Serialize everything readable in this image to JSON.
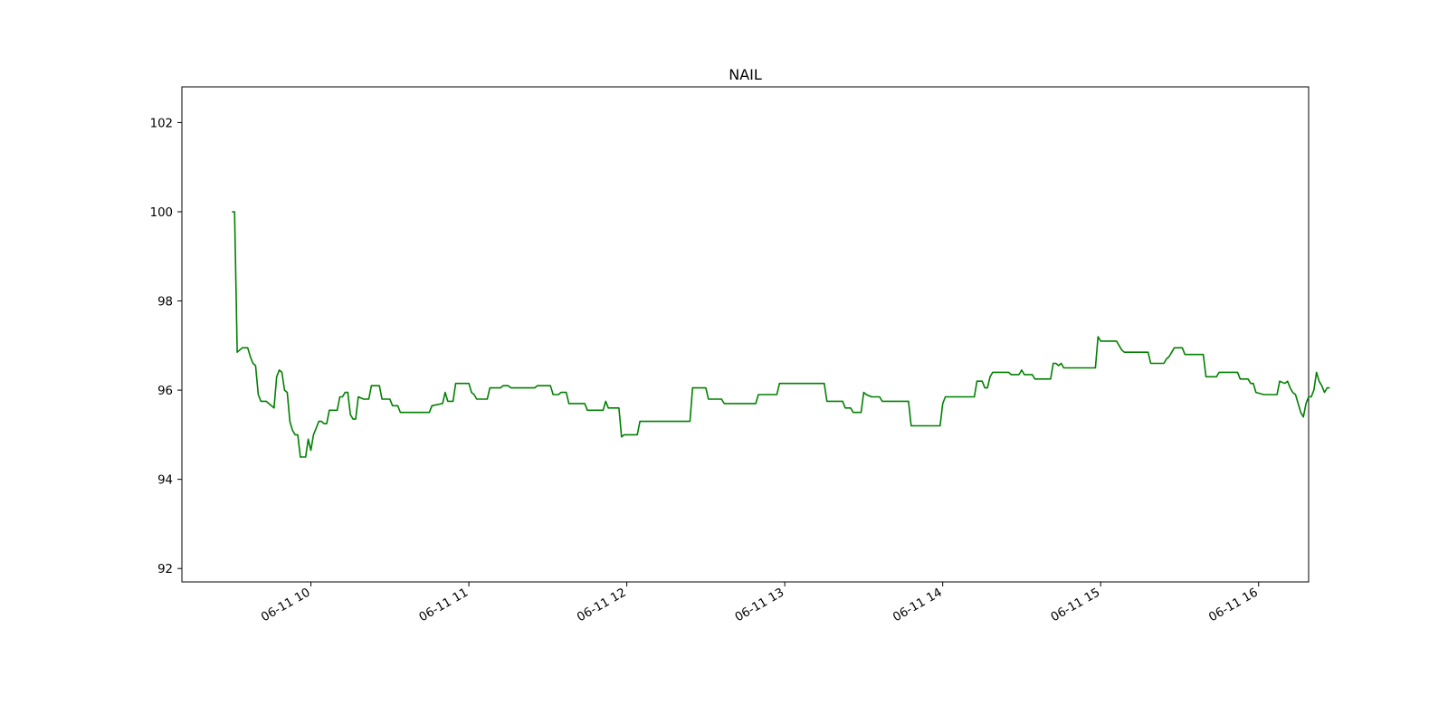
{
  "chart_data": {
    "type": "line",
    "title": "NAIL",
    "xlabel": "",
    "ylabel": "",
    "x_axis_type": "time",
    "ylim": [
      91.7,
      102.8
    ],
    "xlim": [
      "06-11 09:11",
      "06-11 16:19"
    ],
    "yticks": [
      92,
      94,
      96,
      98,
      100,
      102
    ],
    "xticks": [
      "06-11 10",
      "06-11 11",
      "06-11 12",
      "06-11 13",
      "06-11 14",
      "06-11 15",
      "06-11 16"
    ],
    "grid": false,
    "legend": "none",
    "series": [
      {
        "color": "#008000",
        "points": [
          [
            "09:30",
            100.0
          ],
          [
            "09:31",
            100.0
          ],
          [
            "09:32",
            96.85
          ],
          [
            "09:33",
            96.9
          ],
          [
            "09:34",
            96.95
          ],
          [
            "09:36",
            96.95
          ],
          [
            "09:37",
            96.75
          ],
          [
            "09:38",
            96.6
          ],
          [
            "09:39",
            96.55
          ],
          [
            "09:40",
            95.9
          ],
          [
            "09:41",
            95.75
          ],
          [
            "09:42",
            95.75
          ],
          [
            "09:43",
            95.75
          ],
          [
            "09:44",
            95.7
          ],
          [
            "09:45",
            95.65
          ],
          [
            "09:46",
            95.6
          ],
          [
            "09:47",
            96.3
          ],
          [
            "09:48",
            96.45
          ],
          [
            "09:49",
            96.4
          ],
          [
            "09:50",
            96.0
          ],
          [
            "09:51",
            95.95
          ],
          [
            "09:52",
            95.3
          ],
          [
            "09:53",
            95.1
          ],
          [
            "09:54",
            95.0
          ],
          [
            "09:55",
            95.0
          ],
          [
            "09:56",
            94.5
          ],
          [
            "09:57",
            94.5
          ],
          [
            "09:58",
            94.5
          ],
          [
            "09:59",
            94.9
          ],
          [
            "10:00",
            94.65
          ],
          [
            "10:01",
            95.0
          ],
          [
            "10:02",
            95.15
          ],
          [
            "10:03",
            95.3
          ],
          [
            "10:04",
            95.3
          ],
          [
            "10:05",
            95.25
          ],
          [
            "10:06",
            95.25
          ],
          [
            "10:07",
            95.55
          ],
          [
            "10:10",
            95.55
          ],
          [
            "10:11",
            95.85
          ],
          [
            "10:12",
            95.85
          ],
          [
            "10:13",
            95.95
          ],
          [
            "10:14",
            95.95
          ],
          [
            "10:15",
            95.45
          ],
          [
            "10:16",
            95.35
          ],
          [
            "10:17",
            95.35
          ],
          [
            "10:18",
            95.85
          ],
          [
            "10:20",
            95.8
          ],
          [
            "10:22",
            95.8
          ],
          [
            "10:23",
            96.1
          ],
          [
            "10:26",
            96.1
          ],
          [
            "10:27",
            95.8
          ],
          [
            "10:30",
            95.8
          ],
          [
            "10:31",
            95.65
          ],
          [
            "10:33",
            95.65
          ],
          [
            "10:34",
            95.5
          ],
          [
            "10:45",
            95.5
          ],
          [
            "10:46",
            95.65
          ],
          [
            "10:50",
            95.7
          ],
          [
            "10:51",
            95.95
          ],
          [
            "10:52",
            95.75
          ],
          [
            "10:54",
            95.75
          ],
          [
            "10:55",
            96.15
          ],
          [
            "11:00",
            96.15
          ],
          [
            "11:01",
            95.95
          ],
          [
            "11:02",
            95.9
          ],
          [
            "11:03",
            95.8
          ],
          [
            "11:07",
            95.8
          ],
          [
            "11:08",
            96.05
          ],
          [
            "11:12",
            96.05
          ],
          [
            "11:13",
            96.1
          ],
          [
            "11:15",
            96.1
          ],
          [
            "11:16",
            96.05
          ],
          [
            "11:25",
            96.05
          ],
          [
            "11:26",
            96.1
          ],
          [
            "11:31",
            96.1
          ],
          [
            "11:32",
            95.9
          ],
          [
            "11:34",
            95.9
          ],
          [
            "11:35",
            95.95
          ],
          [
            "11:37",
            95.95
          ],
          [
            "11:38",
            95.7
          ],
          [
            "11:44",
            95.7
          ],
          [
            "11:45",
            95.55
          ],
          [
            "11:51",
            95.55
          ],
          [
            "11:52",
            95.75
          ],
          [
            "11:53",
            95.6
          ],
          [
            "11:57",
            95.6
          ],
          [
            "11:58",
            94.95
          ],
          [
            "11:59",
            95.0
          ],
          [
            "12:04",
            95.0
          ],
          [
            "12:05",
            95.3
          ],
          [
            "12:24",
            95.3
          ],
          [
            "12:25",
            96.05
          ],
          [
            "12:30",
            96.05
          ],
          [
            "12:31",
            95.8
          ],
          [
            "12:36",
            95.8
          ],
          [
            "12:37",
            95.7
          ],
          [
            "12:49",
            95.7
          ],
          [
            "12:50",
            95.9
          ],
          [
            "12:57",
            95.9
          ],
          [
            "12:58",
            96.15
          ],
          [
            "13:15",
            96.15
          ],
          [
            "13:16",
            95.75
          ],
          [
            "13:22",
            95.75
          ],
          [
            "13:23",
            95.6
          ],
          [
            "13:25",
            95.6
          ],
          [
            "13:26",
            95.5
          ],
          [
            "13:29",
            95.5
          ],
          [
            "13:30",
            95.95
          ],
          [
            "13:31",
            95.9
          ],
          [
            "13:33",
            95.85
          ],
          [
            "13:36",
            95.85
          ],
          [
            "13:37",
            95.75
          ],
          [
            "13:47",
            95.75
          ],
          [
            "13:48",
            95.2
          ],
          [
            "13:59",
            95.2
          ],
          [
            "14:00",
            95.7
          ],
          [
            "14:01",
            95.85
          ],
          [
            "14:12",
            95.85
          ],
          [
            "14:13",
            96.2
          ],
          [
            "14:15",
            96.2
          ],
          [
            "14:16",
            96.05
          ],
          [
            "14:17",
            96.05
          ],
          [
            "14:18",
            96.3
          ],
          [
            "14:19",
            96.4
          ],
          [
            "14:25",
            96.4
          ],
          [
            "14:26",
            96.35
          ],
          [
            "14:29",
            96.35
          ],
          [
            "14:30",
            96.45
          ],
          [
            "14:31",
            96.35
          ],
          [
            "14:34",
            96.35
          ],
          [
            "14:35",
            96.25
          ],
          [
            "14:41",
            96.25
          ],
          [
            "14:42",
            96.6
          ],
          [
            "14:43",
            96.6
          ],
          [
            "14:44",
            96.55
          ],
          [
            "14:45",
            96.6
          ],
          [
            "14:46",
            96.5
          ],
          [
            "14:58",
            96.5
          ],
          [
            "14:59",
            97.2
          ],
          [
            "15:00",
            97.1
          ],
          [
            "15:06",
            97.1
          ],
          [
            "15:07",
            97.0
          ],
          [
            "15:08",
            96.9
          ],
          [
            "15:09",
            96.85
          ],
          [
            "15:18",
            96.85
          ],
          [
            "15:19",
            96.6
          ],
          [
            "15:24",
            96.6
          ],
          [
            "15:25",
            96.7
          ],
          [
            "15:26",
            96.75
          ],
          [
            "15:27",
            96.85
          ],
          [
            "15:28",
            96.95
          ],
          [
            "15:31",
            96.95
          ],
          [
            "15:32",
            96.8
          ],
          [
            "15:39",
            96.8
          ],
          [
            "15:40",
            96.3
          ],
          [
            "15:44",
            96.3
          ],
          [
            "15:45",
            96.4
          ],
          [
            "15:52",
            96.4
          ],
          [
            "15:53",
            96.25
          ],
          [
            "15:56",
            96.25
          ],
          [
            "15:57",
            96.15
          ],
          [
            "15:58",
            96.15
          ],
          [
            "15:59",
            95.95
          ],
          [
            "16:02",
            95.9
          ],
          [
            "16:07",
            95.9
          ],
          [
            "16:08",
            96.2
          ],
          [
            "16:10",
            96.15
          ],
          [
            "16:11",
            96.2
          ],
          [
            "16:12",
            96.05
          ],
          [
            "16:13",
            95.95
          ],
          [
            "16:14",
            95.9
          ],
          [
            "16:15",
            95.7
          ],
          [
            "16:16",
            95.5
          ],
          [
            "16:17",
            95.4
          ],
          [
            "16:18",
            95.7
          ],
          [
            "16:19",
            95.85
          ],
          [
            "16:20",
            95.85
          ],
          [
            "16:21",
            96.0
          ],
          [
            "16:22",
            96.4
          ],
          [
            "16:23",
            96.2
          ],
          [
            "16:24",
            96.1
          ],
          [
            "16:25",
            95.95
          ],
          [
            "16:26",
            96.05
          ],
          [
            "16:27",
            96.05
          ]
        ]
      }
    ]
  }
}
